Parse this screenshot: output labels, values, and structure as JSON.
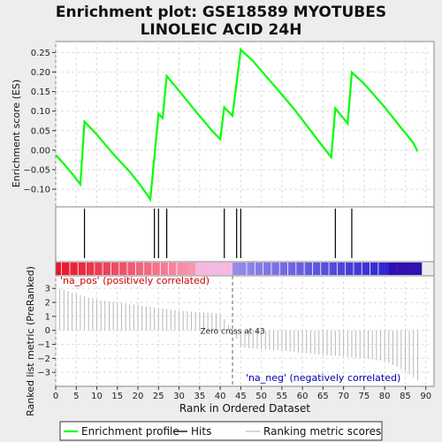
{
  "chart_data": {
    "type": "line",
    "title_line1": "Enrichment plot: GSE18589 MYOTUBES",
    "title_line2": "LINOLEIC ACID 24H",
    "es_ylabel": "Enrichment score (ES)",
    "rank_ylabel": "Ranked list metric (PreRanked)",
    "xlabel": "Rank in Ordered Dataset",
    "xlim": [
      0,
      92
    ],
    "x_ticks": [
      0,
      5,
      10,
      15,
      20,
      25,
      30,
      35,
      40,
      45,
      50,
      55,
      60,
      65,
      70,
      75,
      80,
      85,
      90
    ],
    "es_ylim": [
      -0.145,
      0.278
    ],
    "es_ticks": [
      -0.1,
      -0.05,
      0.0,
      0.05,
      0.1,
      0.15,
      0.2,
      0.25
    ],
    "es_tick_labels": [
      "−0.10",
      "−0.05",
      "0.00",
      "0.05",
      "0.10",
      "0.15",
      "0.20",
      "0.25"
    ],
    "rank_ylim": [
      -4.0,
      3.9
    ],
    "rank_ticks": [
      -3,
      -2,
      -1,
      0,
      1,
      2,
      3
    ],
    "rank_tick_labels": [
      "−3",
      "−2",
      "−1",
      "0",
      "1",
      "2",
      "3"
    ],
    "series": [
      {
        "name": "Enrichment profile",
        "color": "#00ff00",
        "x": [
          0,
          2,
          4,
          6,
          7,
          10,
          14,
          18,
          21,
          23,
          25,
          26,
          27,
          28,
          30,
          34,
          38,
          40,
          41,
          43,
          45,
          48,
          50,
          54,
          58,
          62,
          66,
          67,
          68,
          71,
          72,
          75,
          80,
          84,
          87,
          88
        ],
        "y": [
          -0.012,
          -0.035,
          -0.06,
          -0.087,
          0.073,
          0.04,
          -0.01,
          -0.055,
          -0.095,
          -0.126,
          0.093,
          0.082,
          0.19,
          0.177,
          0.152,
          0.1,
          0.05,
          0.028,
          0.11,
          0.088,
          0.257,
          0.228,
          0.203,
          0.155,
          0.105,
          0.05,
          -0.005,
          -0.018,
          0.107,
          0.068,
          0.199,
          0.17,
          0.11,
          0.057,
          0.018,
          -0.003
        ]
      }
    ],
    "hits": [
      7,
      24,
      25,
      27,
      41,
      44,
      45,
      68,
      72
    ],
    "ranking_metric": {
      "name": "Ranking metric scores",
      "x": [
        0,
        5,
        10,
        15,
        20,
        25,
        30,
        35,
        40,
        43,
        45,
        50,
        55,
        60,
        65,
        70,
        75,
        80,
        85,
        88
      ],
      "y": [
        3.1,
        2.6,
        2.2,
        2.0,
        1.8,
        1.6,
        1.4,
        1.3,
        1.2,
        0.0,
        -1.2,
        -1.35,
        -1.45,
        -1.6,
        -1.75,
        -1.9,
        -2.0,
        -2.2,
        -2.9,
        -3.6
      ]
    },
    "zero_cross_label": "Zero cross at 43",
    "zero_cross_x": 43,
    "pos_label": "'na_pos' (positively correlated)",
    "neg_label": "'na_neg' (negatively correlated)",
    "pos_color": "#cc0000",
    "neg_color": "#0000aa",
    "legend": [
      {
        "label": "Enrichment profile",
        "color": "#00ff00"
      },
      {
        "label": "Hits",
        "color": "#000000"
      },
      {
        "label": "Ranking metric scores",
        "color": "#c0c0c0"
      }
    ]
  }
}
